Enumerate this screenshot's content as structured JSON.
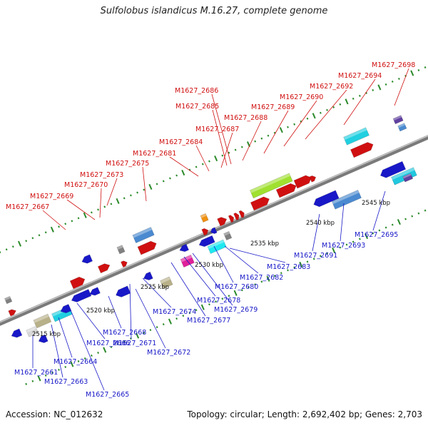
{
  "title": "Sulfolobus islandicus M.16.27, complete genome",
  "footer": {
    "accession": "Accession: NC_012632",
    "stats": "Topology: circular; Length: 2,692,402 bp; Genes: 2,703"
  },
  "colors": {
    "forward": "#d01010",
    "reverse": "#1818c8",
    "backbone": "#8c8c8c",
    "dots": "#2a8a2a"
  },
  "kbp_labels": [
    "2515 kbp",
    "2520 kbp",
    "2525 kbp",
    "2530 kbp",
    "2535 kbp",
    "2540 kbp",
    "2545 kbp"
  ],
  "forward_labels": [
    "M1627_2667",
    "M1627_2669",
    "M1627_2670",
    "M1627_2673",
    "M1627_2675",
    "M1627_2681",
    "M1627_2684",
    "M1627_2687",
    "M1627_2685",
    "M1627_2686",
    "M1627_2688",
    "M1627_2689",
    "M1627_2690",
    "M1627_2692",
    "M1627_2694",
    "M1627_2698"
  ],
  "reverse_labels": [
    "M1627_2661",
    "M1627_2663",
    "M1627_2664",
    "M1627_2665",
    "M1627_2666",
    "M1627_2668",
    "M1627_2671",
    "M1627_2672",
    "M1627_2674",
    "M1627_2677",
    "M1627_2678",
    "M1627_2679",
    "M1627_2680",
    "M1627_2682",
    "M1627_2683",
    "M1627_2691",
    "M1627_2693",
    "M1627_2695"
  ]
}
